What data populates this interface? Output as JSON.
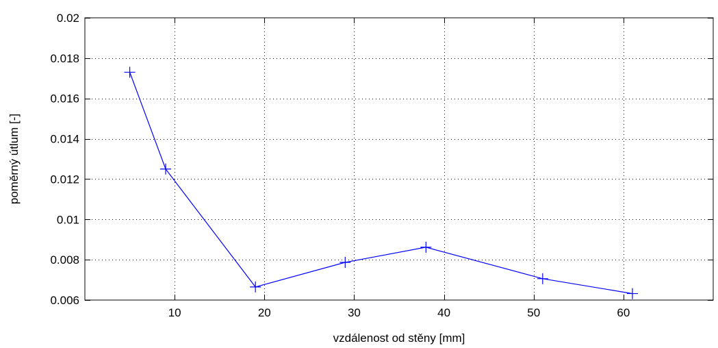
{
  "chart_data": {
    "type": "line",
    "title": "",
    "xlabel": "vzdálenost od stěny [mm]",
    "ylabel": "poměrný útlum [-]",
    "xlim": [
      0,
      70
    ],
    "ylim": [
      0.006,
      0.02
    ],
    "xticks": [
      10,
      20,
      30,
      40,
      50,
      60
    ],
    "xtick_labels": [
      "10",
      "20",
      "30",
      "40",
      "50",
      "60"
    ],
    "yticks": [
      0.006,
      0.008,
      0.01,
      0.012,
      0.014,
      0.016,
      0.018,
      0.02
    ],
    "ytick_labels": [
      "0.006",
      "0.008",
      "0.01",
      "0.012",
      "0.014",
      "0.016",
      "0.018",
      "0.02"
    ],
    "grid": true,
    "grid_style": "dotted",
    "marker": "+",
    "line_color": "#0000ff",
    "series": [
      {
        "x": [
          5,
          9,
          19,
          29,
          38,
          51,
          61
        ],
        "y": [
          0.0173,
          0.0125,
          0.00665,
          0.00787,
          0.00862,
          0.00706,
          0.00632
        ]
      }
    ]
  }
}
